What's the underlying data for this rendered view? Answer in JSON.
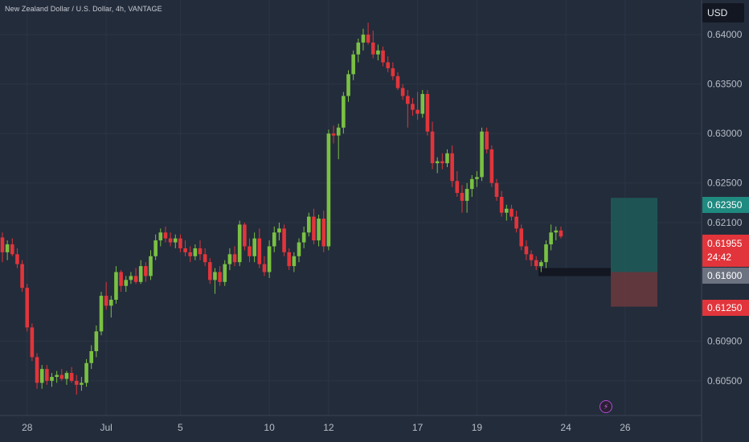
{
  "header": {
    "symbol_title": "New Zealand Dollar / U.S. Dollar, 4h, VANTAGE"
  },
  "currency_button": {
    "label": "USD"
  },
  "price_tags": {
    "target": "0.62350",
    "current": "0.61955",
    "countdown": "24:42",
    "entry": "0.61600",
    "stop": "0.61250"
  },
  "event_icon": {
    "name": "lightning-icon",
    "glyph": "⚡"
  },
  "colors": {
    "background": "#232c3b",
    "up": "#7ac143",
    "down": "#e1353b",
    "grid": "#2c3545",
    "text": "#b6bcc6",
    "target_zone": "#1f5c5a",
    "stop_zone": "#6a3a3e",
    "entry_line": "#131722"
  },
  "chart_data": {
    "type": "candlestick",
    "title": "New Zealand Dollar / U.S. Dollar, 4h, VANTAGE",
    "timeframe": "4h",
    "y_axis": {
      "side": "right",
      "range": [
        0.6015,
        0.6435
      ],
      "ticks": [
        "0.64000",
        "0.63500",
        "0.63000",
        "0.62500",
        "0.62100",
        "0.60900",
        "0.60500"
      ]
    },
    "x_axis": {
      "labels": [
        {
          "label": "28",
          "index": 5
        },
        {
          "label": "Jul",
          "index": 21
        },
        {
          "label": "5",
          "index": 36
        },
        {
          "label": "10",
          "index": 54
        },
        {
          "label": "12",
          "index": 66
        },
        {
          "label": "17",
          "index": 84
        },
        {
          "label": "19",
          "index": 96
        },
        {
          "label": "24",
          "index": 114
        },
        {
          "label": "26",
          "index": 126
        }
      ]
    },
    "grid": true,
    "candles": [
      [
        0.6195,
        0.62,
        0.617,
        0.618
      ],
      [
        0.618,
        0.6192,
        0.6172,
        0.6188
      ],
      [
        0.6188,
        0.6194,
        0.6176,
        0.6178
      ],
      [
        0.6178,
        0.6184,
        0.6164,
        0.6168
      ],
      [
        0.6168,
        0.6172,
        0.614,
        0.6144
      ],
      [
        0.6144,
        0.6148,
        0.61,
        0.6104
      ],
      [
        0.6104,
        0.6108,
        0.607,
        0.6074
      ],
      [
        0.6074,
        0.6078,
        0.6042,
        0.6048
      ],
      [
        0.6048,
        0.6066,
        0.6042,
        0.6062
      ],
      [
        0.6062,
        0.6066,
        0.6046,
        0.605
      ],
      [
        0.605,
        0.6058,
        0.6044,
        0.6054
      ],
      [
        0.6054,
        0.606,
        0.6048,
        0.6056
      ],
      [
        0.6056,
        0.6062,
        0.605,
        0.6052
      ],
      [
        0.6052,
        0.606,
        0.6046,
        0.6058
      ],
      [
        0.6058,
        0.6064,
        0.6048,
        0.605
      ],
      [
        0.605,
        0.6056,
        0.6036,
        0.6046
      ],
      [
        0.6046,
        0.6054,
        0.604,
        0.6048
      ],
      [
        0.6048,
        0.6072,
        0.6044,
        0.6068
      ],
      [
        0.6068,
        0.6086,
        0.6062,
        0.608
      ],
      [
        0.608,
        0.6106,
        0.6074,
        0.61
      ],
      [
        0.61,
        0.614,
        0.6096,
        0.6136
      ],
      [
        0.6136,
        0.615,
        0.6122,
        0.6126
      ],
      [
        0.6126,
        0.6136,
        0.6114,
        0.6132
      ],
      [
        0.6132,
        0.6166,
        0.6128,
        0.616
      ],
      [
        0.616,
        0.6162,
        0.614,
        0.6146
      ],
      [
        0.6146,
        0.6156,
        0.614,
        0.6152
      ],
      [
        0.6152,
        0.616,
        0.6148,
        0.6156
      ],
      [
        0.6156,
        0.6164,
        0.6148,
        0.615
      ],
      [
        0.615,
        0.6172,
        0.6148,
        0.6166
      ],
      [
        0.6166,
        0.617,
        0.615,
        0.6156
      ],
      [
        0.6156,
        0.6182,
        0.6152,
        0.6176
      ],
      [
        0.6176,
        0.6198,
        0.6172,
        0.6192
      ],
      [
        0.6192,
        0.6204,
        0.6186,
        0.62
      ],
      [
        0.62,
        0.6206,
        0.619,
        0.6194
      ],
      [
        0.6194,
        0.62,
        0.6186,
        0.619
      ],
      [
        0.619,
        0.6198,
        0.6184,
        0.6194
      ],
      [
        0.6194,
        0.6198,
        0.618,
        0.6184
      ],
      [
        0.6184,
        0.6192,
        0.6176,
        0.618
      ],
      [
        0.618,
        0.6186,
        0.617,
        0.6176
      ],
      [
        0.6176,
        0.6188,
        0.6172,
        0.6184
      ],
      [
        0.6184,
        0.6192,
        0.6172,
        0.6178
      ],
      [
        0.6178,
        0.6184,
        0.6166,
        0.617
      ],
      [
        0.617,
        0.6174,
        0.6148,
        0.6152
      ],
      [
        0.6152,
        0.6164,
        0.6138,
        0.616
      ],
      [
        0.616,
        0.6166,
        0.6146,
        0.615
      ],
      [
        0.615,
        0.6172,
        0.6146,
        0.6168
      ],
      [
        0.6168,
        0.6184,
        0.6162,
        0.6178
      ],
      [
        0.6178,
        0.6186,
        0.6166,
        0.617
      ],
      [
        0.617,
        0.6212,
        0.6166,
        0.6208
      ],
      [
        0.6208,
        0.621,
        0.6182,
        0.6186
      ],
      [
        0.6186,
        0.6194,
        0.617,
        0.6176
      ],
      [
        0.6176,
        0.62,
        0.617,
        0.6194
      ],
      [
        0.6194,
        0.6204,
        0.6164,
        0.6168
      ],
      [
        0.6168,
        0.6176,
        0.6156,
        0.616
      ],
      [
        0.616,
        0.6192,
        0.6154,
        0.6186
      ],
      [
        0.6186,
        0.6206,
        0.618,
        0.62
      ],
      [
        0.62,
        0.621,
        0.6192,
        0.6204
      ],
      [
        0.6204,
        0.6208,
        0.6176,
        0.618
      ],
      [
        0.618,
        0.6184,
        0.6162,
        0.6166
      ],
      [
        0.6166,
        0.618,
        0.616,
        0.6176
      ],
      [
        0.6176,
        0.6194,
        0.617,
        0.619
      ],
      [
        0.619,
        0.6206,
        0.6184,
        0.62
      ],
      [
        0.62,
        0.622,
        0.6196,
        0.6216
      ],
      [
        0.6216,
        0.6224,
        0.6188,
        0.6192
      ],
      [
        0.6192,
        0.6218,
        0.6186,
        0.6214
      ],
      [
        0.6214,
        0.6222,
        0.618,
        0.6186
      ],
      [
        0.6186,
        0.6304,
        0.6182,
        0.63
      ],
      [
        0.63,
        0.6308,
        0.629,
        0.6298
      ],
      [
        0.6298,
        0.631,
        0.6274,
        0.6306
      ],
      [
        0.6306,
        0.6342,
        0.63,
        0.6338
      ],
      [
        0.6338,
        0.6364,
        0.6332,
        0.636
      ],
      [
        0.636,
        0.6384,
        0.6354,
        0.638
      ],
      [
        0.638,
        0.6396,
        0.6372,
        0.6392
      ],
      [
        0.6392,
        0.6406,
        0.6384,
        0.64
      ],
      [
        0.64,
        0.6412,
        0.639,
        0.6392
      ],
      [
        0.6392,
        0.6404,
        0.6376,
        0.638
      ],
      [
        0.638,
        0.639,
        0.6374,
        0.6384
      ],
      [
        0.6384,
        0.6388,
        0.6368,
        0.6372
      ],
      [
        0.6372,
        0.6378,
        0.6362,
        0.6366
      ],
      [
        0.6366,
        0.6372,
        0.6354,
        0.6358
      ],
      [
        0.6358,
        0.6362,
        0.6344,
        0.6346
      ],
      [
        0.6346,
        0.635,
        0.6334,
        0.6338
      ],
      [
        0.6338,
        0.6344,
        0.6306,
        0.633
      ],
      [
        0.633,
        0.6336,
        0.6318,
        0.6324
      ],
      [
        0.6324,
        0.6342,
        0.6314,
        0.632
      ],
      [
        0.632,
        0.6344,
        0.6316,
        0.634
      ],
      [
        0.634,
        0.6344,
        0.6298,
        0.6302
      ],
      [
        0.6302,
        0.6312,
        0.6264,
        0.627
      ],
      [
        0.627,
        0.6276,
        0.626,
        0.6272
      ],
      [
        0.6272,
        0.628,
        0.6264,
        0.627
      ],
      [
        0.627,
        0.6284,
        0.6266,
        0.628
      ],
      [
        0.628,
        0.6288,
        0.6246,
        0.6252
      ],
      [
        0.6252,
        0.6262,
        0.6236,
        0.624
      ],
      [
        0.624,
        0.6248,
        0.622,
        0.6232
      ],
      [
        0.6232,
        0.625,
        0.622,
        0.6244
      ],
      [
        0.6244,
        0.6258,
        0.6236,
        0.6254
      ],
      [
        0.6254,
        0.6262,
        0.6246,
        0.6256
      ],
      [
        0.6256,
        0.6306,
        0.6252,
        0.6302
      ],
      [
        0.6302,
        0.6306,
        0.628,
        0.6284
      ],
      [
        0.6284,
        0.6288,
        0.6246,
        0.625
      ],
      [
        0.625,
        0.6254,
        0.6232,
        0.6236
      ],
      [
        0.6236,
        0.6242,
        0.6216,
        0.622
      ],
      [
        0.622,
        0.6228,
        0.6212,
        0.6224
      ],
      [
        0.6224,
        0.6228,
        0.6212,
        0.6216
      ],
      [
        0.6216,
        0.6222,
        0.62,
        0.6204
      ],
      [
        0.6204,
        0.6208,
        0.6182,
        0.6186
      ],
      [
        0.6186,
        0.6192,
        0.6172,
        0.6178
      ],
      [
        0.6178,
        0.6182,
        0.6166,
        0.6172
      ],
      [
        0.6172,
        0.6176,
        0.6162,
        0.6166
      ],
      [
        0.6166,
        0.6172,
        0.616,
        0.617
      ],
      [
        0.617,
        0.6192,
        0.6164,
        0.6188
      ],
      [
        0.6188,
        0.6208,
        0.6182,
        0.62
      ],
      [
        0.62,
        0.6206,
        0.6192,
        0.6202
      ],
      [
        0.6202,
        0.6206,
        0.6194,
        0.6196
      ]
    ],
    "annotations": {
      "support_level": 0.616,
      "long_position": {
        "entry": 0.616,
        "target": 0.6235,
        "stop": 0.6125
      }
    }
  }
}
